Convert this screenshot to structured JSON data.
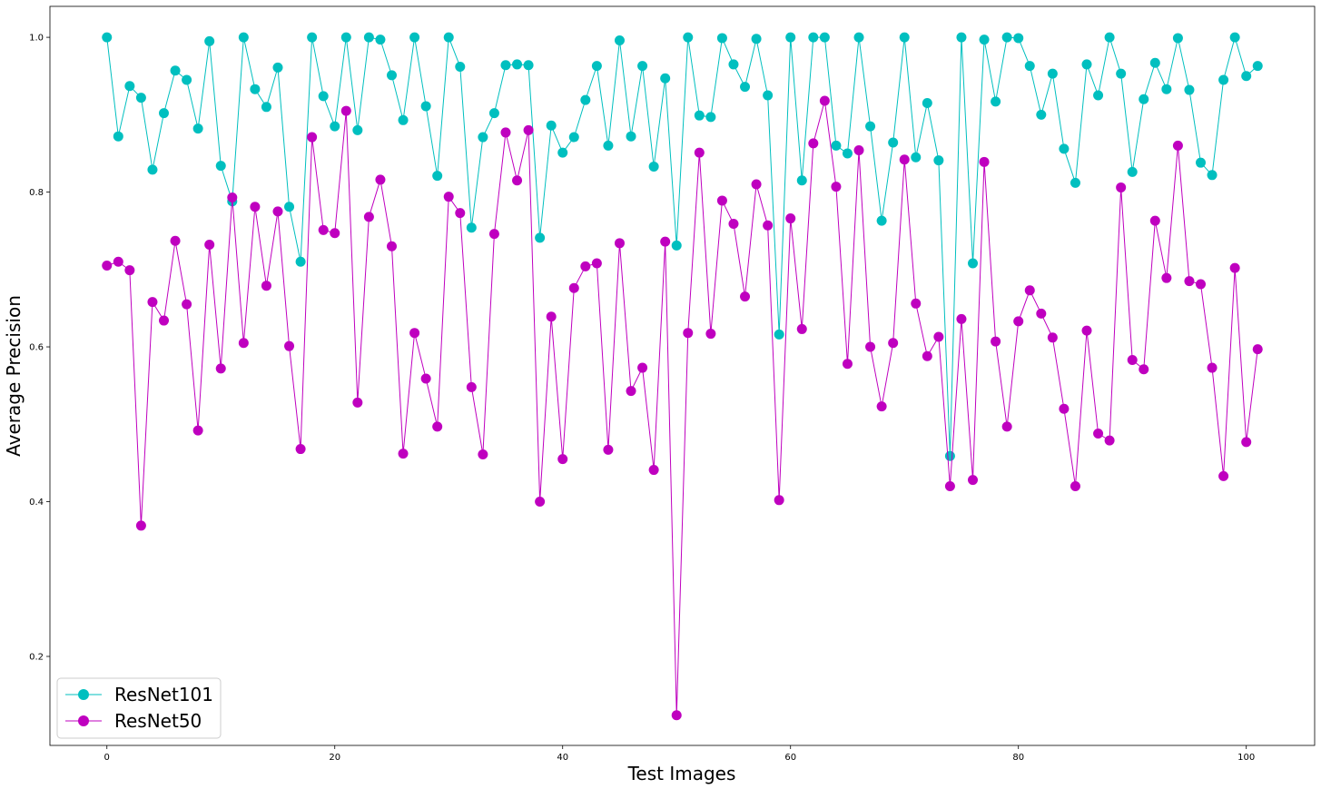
{
  "chart_data": {
    "type": "line",
    "title": "",
    "xlabel": "Test Images",
    "ylabel": "Average Precision",
    "xlim": [
      -5,
      106
    ],
    "ylim": [
      0.085,
      1.04
    ],
    "x_ticks": [
      0,
      20,
      40,
      60,
      80,
      100
    ],
    "x_tick_labels": [
      "0",
      "20",
      "40",
      "60",
      "80",
      "100"
    ],
    "y_ticks": [
      0.2,
      0.4,
      0.6,
      0.8,
      1.0
    ],
    "y_tick_labels": [
      "0.2",
      "0.4",
      "0.6",
      "0.8",
      "1.0"
    ],
    "grid": false,
    "legend_position": "lower-left",
    "x": [
      0,
      1,
      2,
      3,
      4,
      5,
      6,
      7,
      8,
      9,
      10,
      11,
      12,
      13,
      14,
      15,
      16,
      17,
      18,
      19,
      20,
      21,
      22,
      23,
      24,
      25,
      26,
      27,
      28,
      29,
      30,
      31,
      32,
      33,
      34,
      35,
      36,
      37,
      38,
      39,
      40,
      41,
      42,
      43,
      44,
      45,
      46,
      47,
      48,
      49,
      50,
      51,
      52,
      53,
      54,
      55,
      56,
      57,
      58,
      59,
      60,
      61,
      62,
      63,
      64,
      65,
      66,
      67,
      68,
      69,
      70,
      71,
      72,
      73,
      74,
      75,
      76,
      77,
      78,
      79,
      80,
      81,
      82,
      83,
      84,
      85,
      86,
      87,
      88,
      89,
      90,
      91,
      92,
      93,
      94,
      95,
      96,
      97,
      98,
      99,
      100,
      101
    ],
    "series": [
      {
        "name": "ResNet101",
        "color": "#00bfbf",
        "values": [
          1.0,
          0.872,
          0.937,
          0.922,
          0.829,
          0.902,
          0.957,
          0.945,
          0.882,
          0.995,
          0.834,
          0.788,
          1.0,
          0.933,
          0.91,
          0.961,
          0.781,
          0.71,
          1.0,
          0.924,
          0.885,
          1.0,
          0.88,
          1.0,
          0.997,
          0.951,
          0.893,
          1.0,
          0.911,
          0.821,
          1.0,
          0.962,
          0.754,
          0.871,
          0.902,
          0.964,
          0.965,
          0.964,
          0.741,
          0.886,
          0.851,
          0.871,
          0.919,
          0.963,
          0.86,
          0.996,
          0.872,
          0.963,
          0.833,
          0.947,
          0.731,
          1.0,
          0.899,
          0.897,
          0.999,
          0.965,
          0.936,
          0.998,
          0.925,
          0.616,
          1.0,
          0.815,
          1.0,
          1.0,
          0.86,
          0.85,
          1.0,
          0.885,
          0.763,
          0.864,
          1.0,
          0.845,
          0.915,
          0.841,
          0.459,
          1.0,
          0.708,
          0.997,
          0.917,
          1.0,
          0.999,
          0.963,
          0.9,
          0.953,
          0.856,
          0.812,
          0.965,
          0.925,
          1.0,
          0.953,
          0.826,
          0.92,
          0.967,
          0.933,
          0.999,
          0.932,
          0.838,
          0.822,
          0.945,
          1.0,
          0.95,
          0.963
        ]
      },
      {
        "name": "ResNet50",
        "color": "#bf00bf",
        "values": [
          0.705,
          0.71,
          0.699,
          0.369,
          0.658,
          0.634,
          0.737,
          0.655,
          0.492,
          0.732,
          0.572,
          0.793,
          0.605,
          0.781,
          0.679,
          0.775,
          0.601,
          0.468,
          0.871,
          0.751,
          0.747,
          0.905,
          0.528,
          0.768,
          0.816,
          0.73,
          0.462,
          0.618,
          0.559,
          0.497,
          0.794,
          0.773,
          0.548,
          0.461,
          0.746,
          0.877,
          0.815,
          0.88,
          0.4,
          0.639,
          0.455,
          0.676,
          0.704,
          0.708,
          0.467,
          0.734,
          0.543,
          0.573,
          0.441,
          0.736,
          0.124,
          0.618,
          0.851,
          0.617,
          0.789,
          0.759,
          0.665,
          0.81,
          0.757,
          0.402,
          0.766,
          0.623,
          0.863,
          0.918,
          0.807,
          0.578,
          0.854,
          0.6,
          0.523,
          0.605,
          0.842,
          0.656,
          0.588,
          0.613,
          0.42,
          0.636,
          0.428,
          0.839,
          0.607,
          0.497,
          0.633,
          0.673,
          0.643,
          0.612,
          0.52,
          0.42,
          0.621,
          0.488,
          0.479,
          0.806,
          0.583,
          0.571,
          0.763,
          0.689,
          0.86,
          0.685,
          0.681,
          0.573,
          0.433,
          0.702,
          0.477,
          0.597
        ]
      }
    ]
  }
}
